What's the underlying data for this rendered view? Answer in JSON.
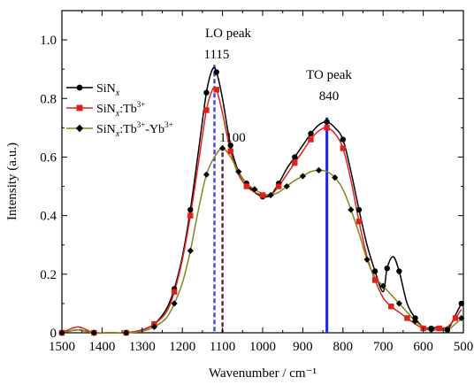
{
  "chart_data": {
    "type": "line",
    "xlabel": "Wavenumber / cm⁻¹",
    "ylabel": "Intensity (a.u.)",
    "xlim": [
      1500,
      500
    ],
    "ylim": [
      0,
      1.1
    ],
    "x_reversed": true,
    "x_ticks": [
      1500,
      1400,
      1300,
      1200,
      1100,
      1000,
      900,
      800,
      700,
      600,
      500
    ],
    "y_ticks": [
      0,
      0.2,
      0.4,
      0.6,
      0.8,
      1.0
    ],
    "x_tick_labels": [
      "1500",
      "1400",
      "1300",
      "1200",
      "1100",
      "1000",
      "900",
      "800",
      "700",
      "600",
      "500"
    ],
    "y_tick_labels": [
      "0",
      "0.2",
      "0.4",
      "0.6",
      "0.8",
      "1.0"
    ],
    "grid": false,
    "legend": "top-left",
    "series": [
      {
        "name": "SiNx",
        "color": "#000000",
        "marker": "circle",
        "points": [
          [
            1500,
            0.0
          ],
          [
            1460,
            0.01
          ],
          [
            1420,
            0.0
          ],
          [
            1380,
            0.0
          ],
          [
            1340,
            0.0
          ],
          [
            1300,
            0.01
          ],
          [
            1270,
            0.03
          ],
          [
            1240,
            0.08
          ],
          [
            1220,
            0.15
          ],
          [
            1200,
            0.26
          ],
          [
            1180,
            0.42
          ],
          [
            1160,
            0.62
          ],
          [
            1140,
            0.82
          ],
          [
            1125,
            0.9
          ],
          [
            1115,
            0.89
          ],
          [
            1100,
            0.8
          ],
          [
            1080,
            0.64
          ],
          [
            1060,
            0.55
          ],
          [
            1040,
            0.51
          ],
          [
            1020,
            0.48
          ],
          [
            1000,
            0.465
          ],
          [
            980,
            0.47
          ],
          [
            960,
            0.51
          ],
          [
            940,
            0.56
          ],
          [
            920,
            0.6
          ],
          [
            900,
            0.64
          ],
          [
            880,
            0.68
          ],
          [
            860,
            0.71
          ],
          [
            840,
            0.72
          ],
          [
            820,
            0.7
          ],
          [
            800,
            0.66
          ],
          [
            780,
            0.55
          ],
          [
            760,
            0.42
          ],
          [
            740,
            0.3
          ],
          [
            720,
            0.21
          ],
          [
            700,
            0.14
          ],
          [
            690,
            0.22
          ],
          [
            675,
            0.26
          ],
          [
            660,
            0.21
          ],
          [
            640,
            0.1
          ],
          [
            620,
            0.05
          ],
          [
            600,
            0.02
          ],
          [
            580,
            0.015
          ],
          [
            560,
            0.02
          ],
          [
            540,
            0.01
          ],
          [
            520,
            0.06
          ],
          [
            505,
            0.1
          ]
        ]
      },
      {
        "name": "SiNx:Tb3+",
        "color": "#e0201b",
        "marker": "square",
        "points": [
          [
            1500,
            0.0
          ],
          [
            1460,
            0.02
          ],
          [
            1420,
            0.0
          ],
          [
            1380,
            0.0
          ],
          [
            1340,
            0.0
          ],
          [
            1300,
            0.01
          ],
          [
            1270,
            0.03
          ],
          [
            1240,
            0.07
          ],
          [
            1220,
            0.14
          ],
          [
            1200,
            0.25
          ],
          [
            1180,
            0.4
          ],
          [
            1160,
            0.58
          ],
          [
            1140,
            0.76
          ],
          [
            1125,
            0.83
          ],
          [
            1115,
            0.83
          ],
          [
            1100,
            0.75
          ],
          [
            1080,
            0.62
          ],
          [
            1060,
            0.54
          ],
          [
            1040,
            0.5
          ],
          [
            1020,
            0.48
          ],
          [
            1000,
            0.47
          ],
          [
            980,
            0.47
          ],
          [
            960,
            0.5
          ],
          [
            940,
            0.54
          ],
          [
            920,
            0.58
          ],
          [
            900,
            0.62
          ],
          [
            880,
            0.66
          ],
          [
            860,
            0.69
          ],
          [
            840,
            0.7
          ],
          [
            820,
            0.68
          ],
          [
            800,
            0.63
          ],
          [
            780,
            0.52
          ],
          [
            760,
            0.38
          ],
          [
            740,
            0.26
          ],
          [
            720,
            0.18
          ],
          [
            700,
            0.12
          ],
          [
            680,
            0.09
          ],
          [
            660,
            0.07
          ],
          [
            640,
            0.05
          ],
          [
            620,
            0.03
          ],
          [
            600,
            0.015
          ],
          [
            580,
            0.01
          ],
          [
            560,
            0.015
          ],
          [
            540,
            0.02
          ],
          [
            520,
            0.05
          ],
          [
            505,
            0.08
          ]
        ]
      },
      {
        "name": "SiNx:Tb3+-Yb3+",
        "color": "#7f8a1a",
        "marker": "diamond",
        "points": [
          [
            1500,
            0.0
          ],
          [
            1460,
            0.01
          ],
          [
            1420,
            0.0
          ],
          [
            1380,
            0.0
          ],
          [
            1340,
            0.0
          ],
          [
            1300,
            0.005
          ],
          [
            1270,
            0.02
          ],
          [
            1240,
            0.05
          ],
          [
            1220,
            0.1
          ],
          [
            1200,
            0.17
          ],
          [
            1180,
            0.28
          ],
          [
            1160,
            0.42
          ],
          [
            1140,
            0.54
          ],
          [
            1120,
            0.6
          ],
          [
            1100,
            0.63
          ],
          [
            1080,
            0.6
          ],
          [
            1060,
            0.55
          ],
          [
            1040,
            0.51
          ],
          [
            1020,
            0.49
          ],
          [
            1000,
            0.475
          ],
          [
            980,
            0.47
          ],
          [
            960,
            0.48
          ],
          [
            940,
            0.5
          ],
          [
            920,
            0.52
          ],
          [
            900,
            0.535
          ],
          [
            880,
            0.55
          ],
          [
            860,
            0.555
          ],
          [
            840,
            0.55
          ],
          [
            820,
            0.53
          ],
          [
            800,
            0.49
          ],
          [
            780,
            0.42
          ],
          [
            760,
            0.34
          ],
          [
            740,
            0.25
          ],
          [
            720,
            0.19
          ],
          [
            700,
            0.16
          ],
          [
            680,
            0.13
          ],
          [
            660,
            0.1
          ],
          [
            640,
            0.07
          ],
          [
            620,
            0.04
          ],
          [
            600,
            0.02
          ],
          [
            580,
            0.01
          ],
          [
            560,
            0.01
          ],
          [
            540,
            0.01
          ],
          [
            520,
            0.03
          ],
          [
            505,
            0.05
          ]
        ]
      }
    ],
    "vertical_lines": [
      {
        "x": 1120,
        "color": "#3b3bff",
        "style": "dashed"
      },
      {
        "x": 1100,
        "color": "#5a1a3a",
        "style": "dashed"
      },
      {
        "x": 840,
        "color": "#2222ee",
        "style": "solid"
      }
    ],
    "annotations": {
      "lo_title": "LO peak",
      "lo_value": "1115",
      "mid_value": "1100",
      "to_title": "TO peak",
      "to_value": "840"
    },
    "legend_labels": {
      "s1_base": "SiN",
      "s1_sub": "x",
      "s2_base": "SiN",
      "s2_sub": "x",
      "s2_rest": ":Tb",
      "s2_sup": "3+",
      "s3_base": "SiN",
      "s3_sub": "x",
      "s3_rest1": ":Tb",
      "s3_sup1": "3+",
      "s3_rest2": "-Yb",
      "s3_sup2": "3+"
    }
  }
}
